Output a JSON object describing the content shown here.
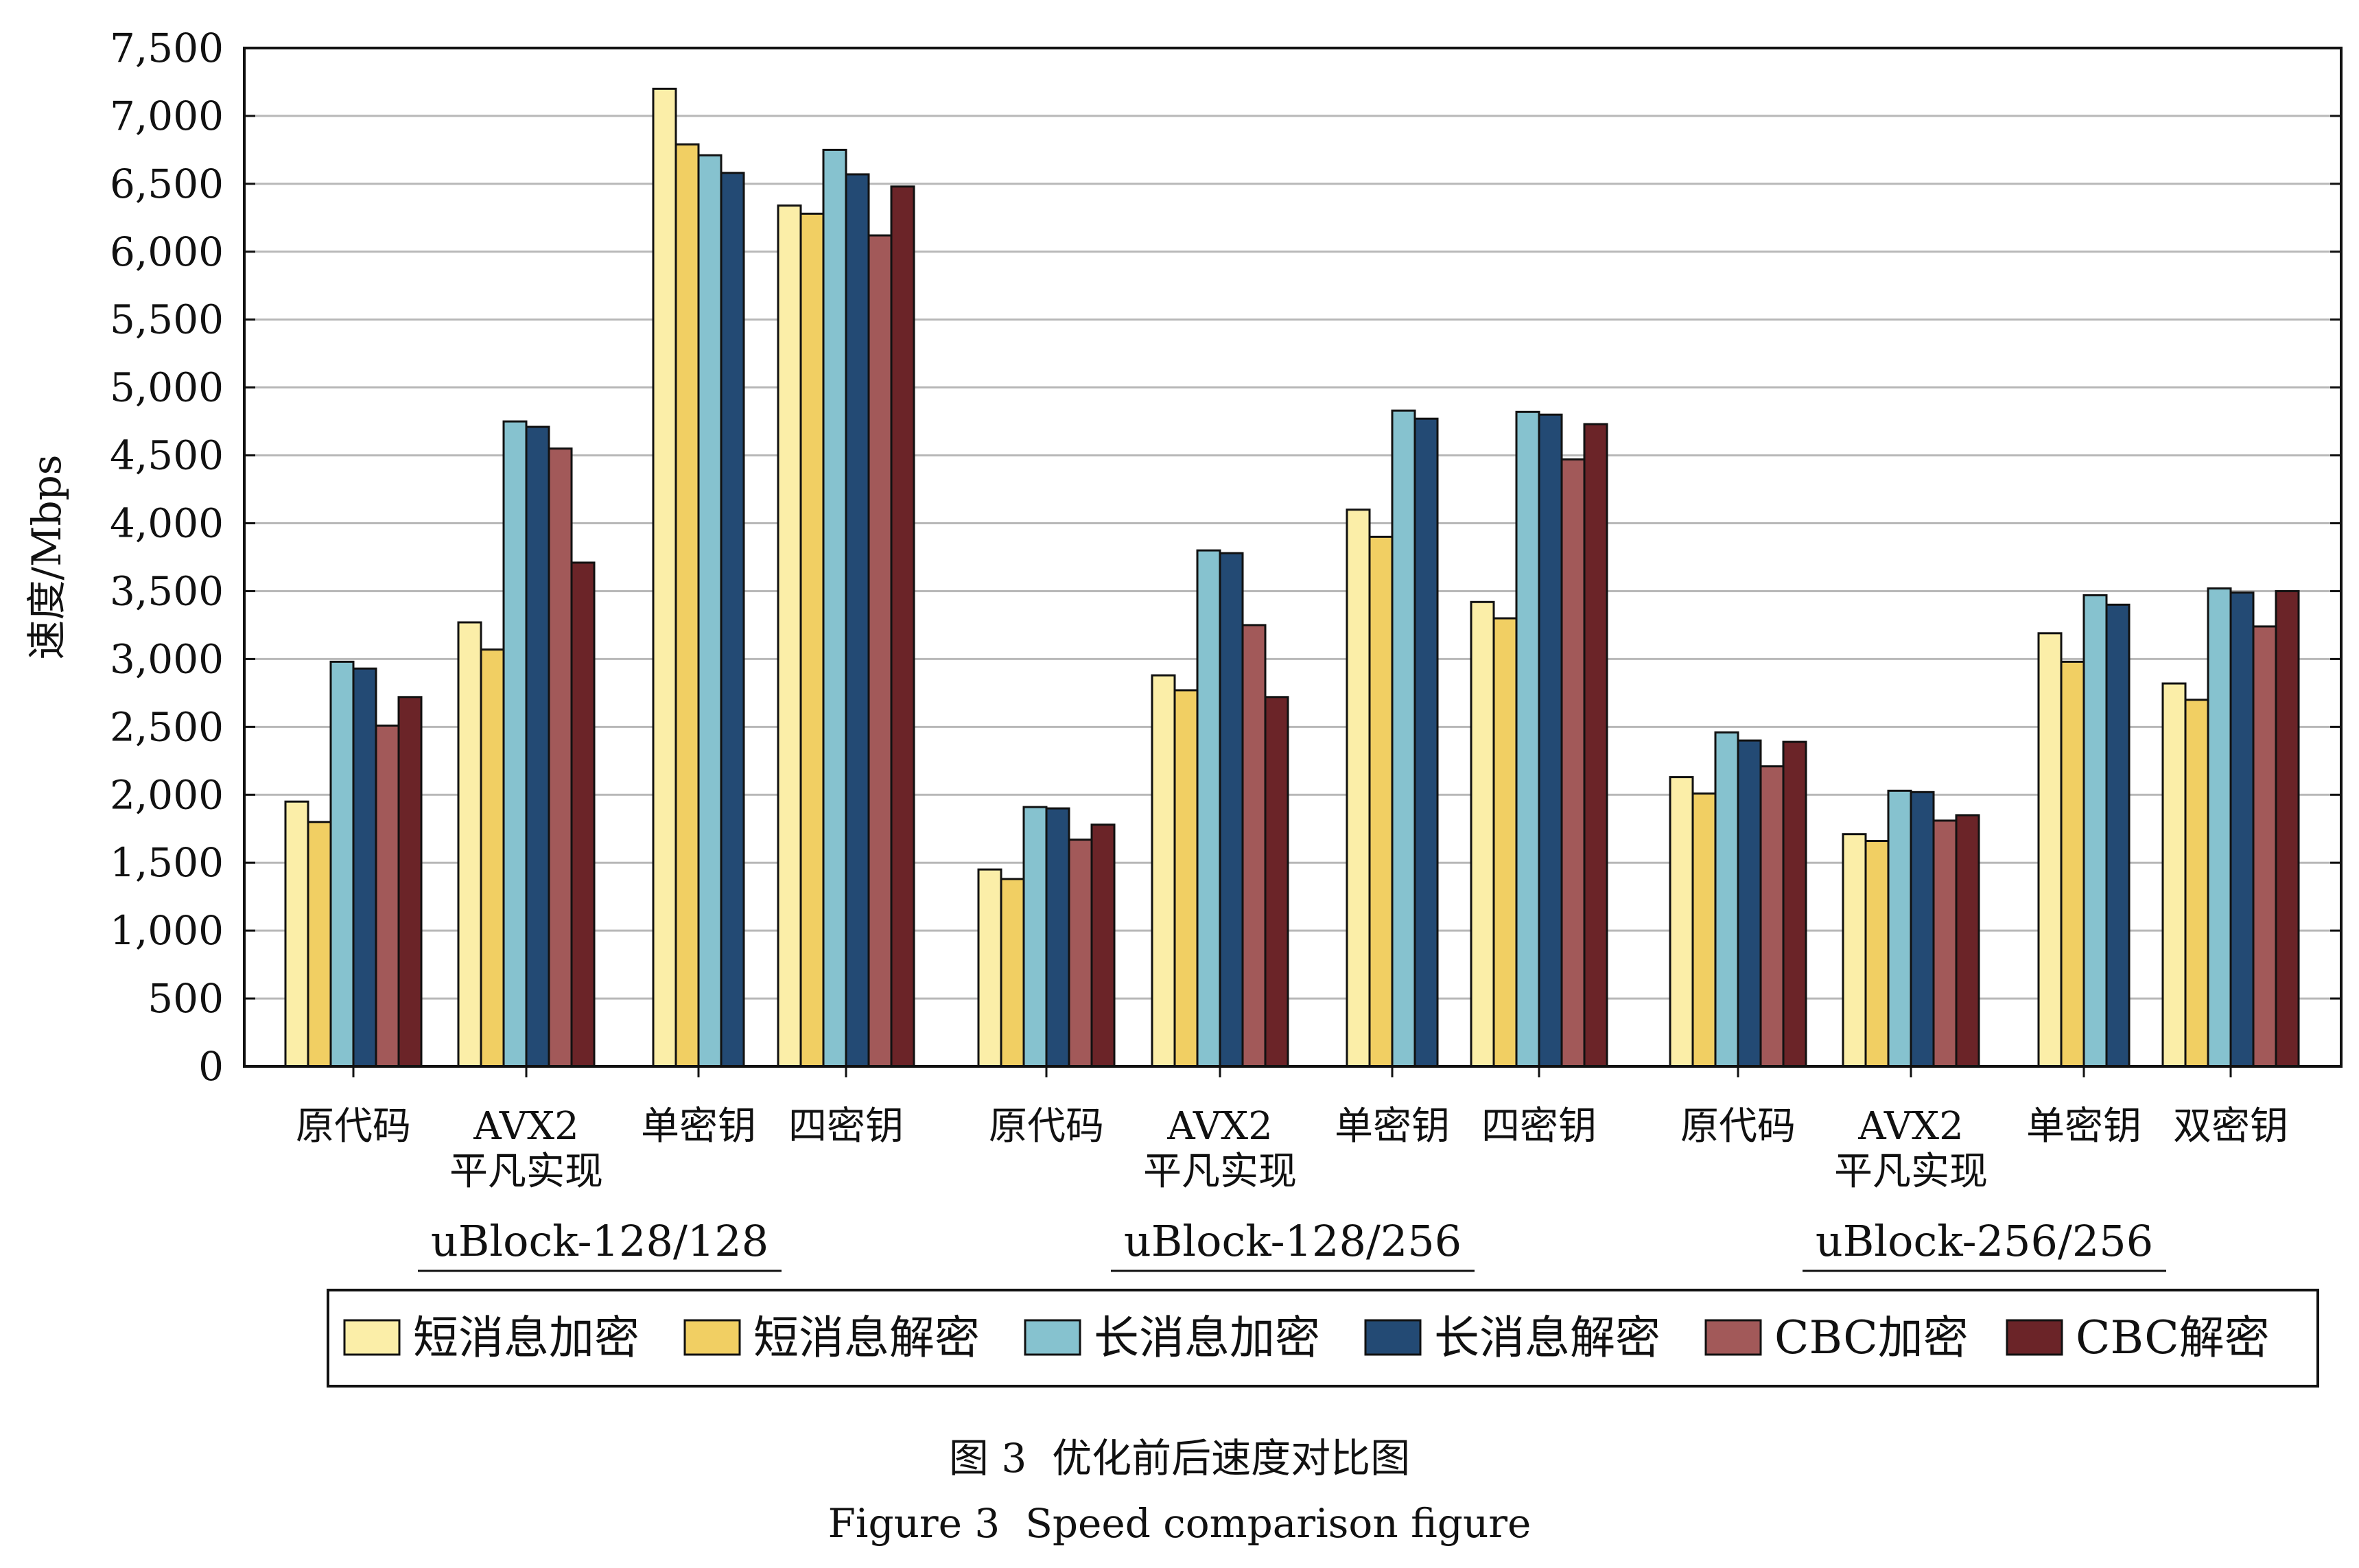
{
  "chart_data": {
    "type": "bar",
    "ylabel": "速度/Mbps",
    "ylim": [
      0,
      7500
    ],
    "yticks": [
      "0",
      "500",
      "1,000",
      "1,500",
      "2,000",
      "2,500",
      "3,000",
      "3,500",
      "4,000",
      "4,500",
      "5,000",
      "5,500",
      "6,000",
      "6,500",
      "7,000",
      "7,500"
    ],
    "ytick_values": [
      0,
      500,
      1000,
      1500,
      2000,
      2500,
      3000,
      3500,
      4000,
      4500,
      5000,
      5500,
      6000,
      6500,
      7000,
      7500
    ],
    "grid": true,
    "legend_position": "bottom",
    "series": [
      {
        "name": "短消息加密",
        "color": "#fbeea8"
      },
      {
        "name": "短消息解密",
        "color": "#f1cf63"
      },
      {
        "name": "长消息加密",
        "color": "#86c2cf"
      },
      {
        "name": "长消息解密",
        "color": "#234a74"
      },
      {
        "name": "CBC加密",
        "color": "#a25959"
      },
      {
        "name": "CBC解密",
        "color": "#6b2428"
      }
    ],
    "groups": [
      {
        "label": "uBlock-128/128",
        "categories": [
          {
            "lines": [
              "原代码"
            ],
            "values": [
              1950,
              1800,
              2980,
              2930,
              2510,
              2720
            ]
          },
          {
            "lines": [
              "AVX2",
              "平凡实现"
            ],
            "values": [
              3270,
              3070,
              4750,
              4710,
              4550,
              3710
            ]
          },
          {
            "lines": [
              "单密钥"
            ],
            "values": [
              7200,
              6790,
              6710,
              6580
            ]
          },
          {
            "lines": [
              "四密钥"
            ],
            "values": [
              6340,
              6280,
              6750,
              6570,
              6120,
              6480
            ]
          }
        ]
      },
      {
        "label": "uBlock-128/256",
        "categories": [
          {
            "lines": [
              "原代码"
            ],
            "values": [
              1450,
              1380,
              1910,
              1900,
              1670,
              1780
            ]
          },
          {
            "lines": [
              "AVX2",
              "平凡实现"
            ],
            "values": [
              2880,
              2770,
              3800,
              3780,
              3250,
              2720
            ]
          },
          {
            "lines": [
              "单密钥"
            ],
            "values": [
              4100,
              3900,
              4830,
              4770
            ]
          },
          {
            "lines": [
              "四密钥"
            ],
            "values": [
              3420,
              3300,
              4820,
              4800,
              4470,
              4730
            ]
          }
        ]
      },
      {
        "label": "uBlock-256/256",
        "categories": [
          {
            "lines": [
              "原代码"
            ],
            "values": [
              2130,
              2010,
              2460,
              2400,
              2210,
              2390
            ]
          },
          {
            "lines": [
              "AVX2",
              "平凡实现"
            ],
            "values": [
              1710,
              1660,
              2030,
              2020,
              1810,
              1850
            ]
          },
          {
            "lines": [
              "单密钥"
            ],
            "values": [
              3190,
              2980,
              3470,
              3400
            ]
          },
          {
            "lines": [
              "双密钥"
            ],
            "values": [
              2820,
              2700,
              3520,
              3490,
              3240,
              3500
            ]
          }
        ]
      }
    ]
  },
  "caption": {
    "zh": "图 3  优化前后速度对比图",
    "en": "Figure 3  Speed comparison figure"
  }
}
